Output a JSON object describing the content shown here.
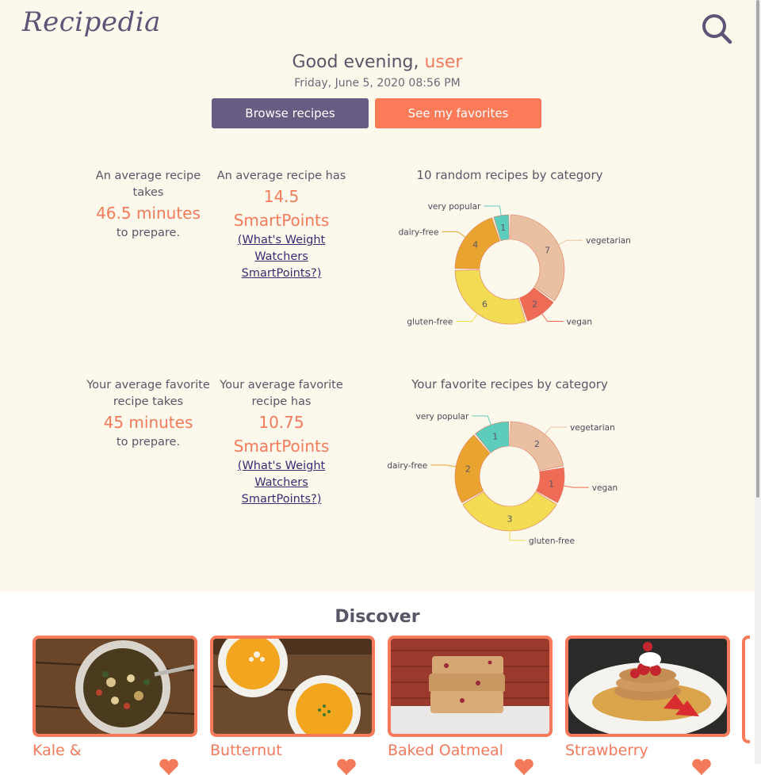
{
  "app": {
    "title": "Recipedia"
  },
  "header": {
    "search_icon": "search-icon"
  },
  "greeting": {
    "prefix": "Good evening, ",
    "user": "user",
    "datetime": "Friday, June 5, 2020 08:56 PM"
  },
  "buttons": {
    "browse": "Browse recipes",
    "favorites": "See my favorites"
  },
  "colors": {
    "accent": "#f47a5c",
    "primary": "#675c82",
    "cream": "#fcf9ec",
    "vegetarian": "#e9c0a1",
    "vegan": "#ee6b55",
    "gluten_free": "#f1dc53",
    "dairy_free": "#e8a42f",
    "very_popular": "#5ccdbd"
  },
  "stats": {
    "avg_time": {
      "line1": "An average recipe",
      "line2": "takes",
      "value": "46.5 minutes",
      "suffix": "to prepare."
    },
    "avg_points": {
      "line1": "An average recipe has",
      "value1": "14.5",
      "value2": "SmartPoints",
      "link1": "(What's Weight",
      "link2": "Watchers",
      "link3": "SmartPoints?)"
    },
    "fav_time": {
      "line1": "Your average favorite",
      "line2": "recipe takes",
      "value": "45 minutes",
      "suffix": "to prepare."
    },
    "fav_points": {
      "line1": "Your average favorite",
      "line2": "recipe has",
      "value1": "10.75",
      "value2": "SmartPoints",
      "link1": "(What's Weight",
      "link2": "Watchers",
      "link3": "SmartPoints?)"
    }
  },
  "chart_data": [
    {
      "type": "pie",
      "title": "10 random recipes by category",
      "categories": [
        "vegetarian",
        "vegan",
        "gluten-free",
        "dairy-free",
        "very popular"
      ],
      "values": [
        7,
        2,
        6,
        4,
        1
      ]
    },
    {
      "type": "pie",
      "title": "Your favorite recipes by category",
      "categories": [
        "vegetarian",
        "vegan",
        "gluten-free",
        "dairy-free",
        "very popular"
      ],
      "values": [
        2,
        1,
        3,
        2,
        1
      ]
    }
  ],
  "discover": {
    "title": "Discover",
    "cards": [
      {
        "title": "Kale &",
        "image": "lentil-soup-bowl"
      },
      {
        "title": "Butternut",
        "image": "butternut-soup-bowls"
      },
      {
        "title": "Baked Oatmeal",
        "image": "baked-oatmeal-bars"
      },
      {
        "title": "Strawberry",
        "image": "strawberry-pancakes"
      }
    ]
  }
}
